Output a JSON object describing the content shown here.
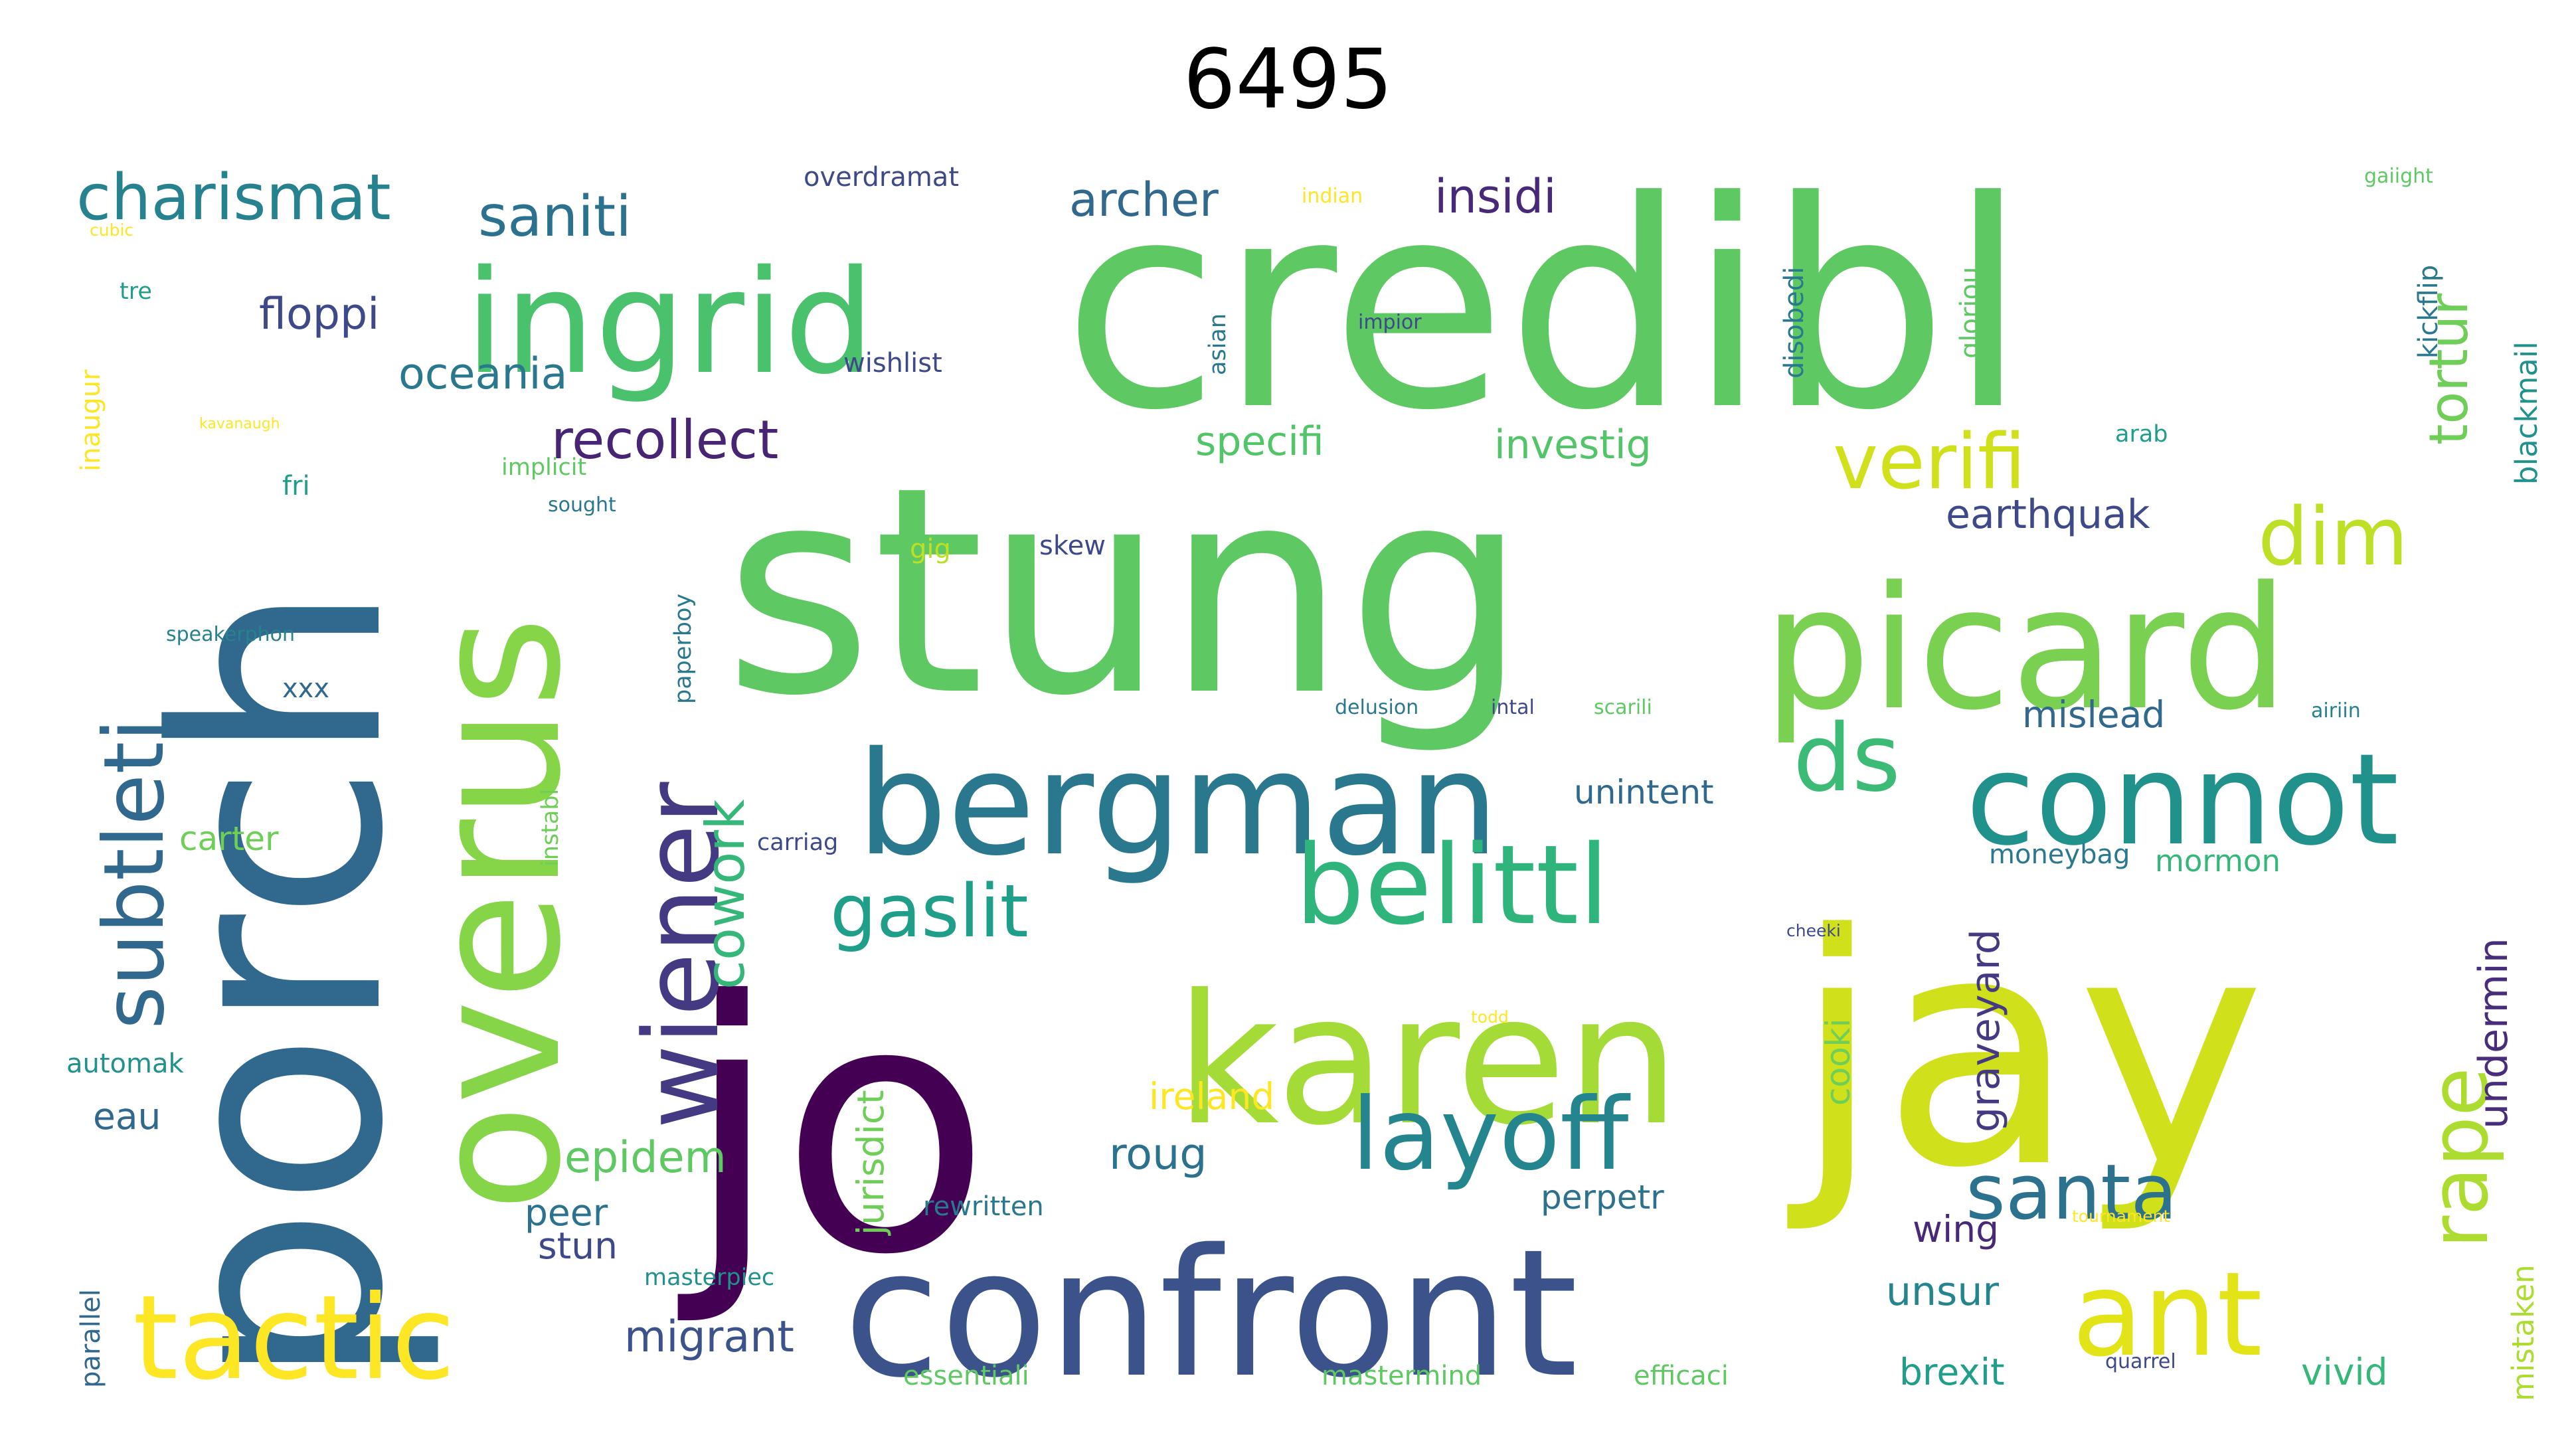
{
  "title": "6495",
  "words": [
    {
      "text": "credibl",
      "color": "#5ec962"
    },
    {
      "text": "stung",
      "color": "#5ec962"
    },
    {
      "text": "porch",
      "color": "#31688e"
    },
    {
      "text": "jo",
      "color": "#440154"
    },
    {
      "text": "jay",
      "color": "#d0e11c"
    },
    {
      "text": "picard",
      "color": "#7ad151"
    },
    {
      "text": "confront",
      "color": "#3b528b"
    },
    {
      "text": "overus",
      "color": "#86d549"
    },
    {
      "text": "karen",
      "color": "#a5db36"
    },
    {
      "text": "bergman",
      "color": "#2a788e"
    },
    {
      "text": "ingrid",
      "color": "#4ac16d"
    },
    {
      "text": "connot",
      "color": "#21918c"
    },
    {
      "text": "tactic",
      "color": "#fde725"
    },
    {
      "text": "ant",
      "color": "#e2e418"
    },
    {
      "text": "belittl",
      "color": "#2fb47c"
    },
    {
      "text": "wiener",
      "color": "#443a83"
    },
    {
      "text": "layoff",
      "color": "#25858e"
    },
    {
      "text": "subtleti",
      "color": "#31688e"
    },
    {
      "text": "rape",
      "color": "#addc30"
    },
    {
      "text": "dim",
      "color": "#bddf26"
    },
    {
      "text": "ds",
      "color": "#3bbb75"
    },
    {
      "text": "verifi",
      "color": "#d0e11c"
    },
    {
      "text": "santa",
      "color": "#2c728e"
    },
    {
      "text": "gaslit",
      "color": "#1f9e89"
    },
    {
      "text": "charismat",
      "color": "#26828e"
    },
    {
      "text": "saniti",
      "color": "#2c728e"
    },
    {
      "text": "recollect",
      "color": "#482475"
    },
    {
      "text": "cowork",
      "color": "#35b779"
    },
    {
      "text": "tortur",
      "color": "#6ece58"
    },
    {
      "text": "undermin",
      "color": "#472d7b"
    },
    {
      "text": "graveyard",
      "color": "#443a83"
    },
    {
      "text": "archer",
      "color": "#31688e"
    },
    {
      "text": "insidi",
      "color": "#482878"
    },
    {
      "text": "floppi",
      "color": "#3e4989"
    },
    {
      "text": "oceania",
      "color": "#2a788e"
    },
    {
      "text": "specifi",
      "color": "#52c569"
    },
    {
      "text": "investig",
      "color": "#52c569"
    },
    {
      "text": "earthquak",
      "color": "#3e4989"
    },
    {
      "text": "mislead",
      "color": "#31688e"
    },
    {
      "text": "epidem",
      "color": "#5ec962"
    },
    {
      "text": "migrant",
      "color": "#3b528b"
    },
    {
      "text": "roug",
      "color": "#2c728e"
    },
    {
      "text": "ireland",
      "color": "#fde725"
    },
    {
      "text": "cooki",
      "color": "#6ece58"
    },
    {
      "text": "jurisdict",
      "color": "#6ece58"
    },
    {
      "text": "unsur",
      "color": "#25858e"
    },
    {
      "text": "wing",
      "color": "#482878"
    },
    {
      "text": "brexit",
      "color": "#1f9e89"
    },
    {
      "text": "vivid",
      "color": "#35b779"
    },
    {
      "text": "mormon",
      "color": "#35b779"
    },
    {
      "text": "mistaken",
      "color": "#addc30"
    },
    {
      "text": "blackmail",
      "color": "#21918c"
    },
    {
      "text": "kickflip",
      "color": "#2a788e"
    },
    {
      "text": "peer",
      "color": "#2c728e"
    },
    {
      "text": "stun",
      "color": "#3e4989"
    },
    {
      "text": "perpetr",
      "color": "#2c728e"
    },
    {
      "text": "eau",
      "color": "#31688e"
    },
    {
      "text": "parallel",
      "color": "#31688e"
    },
    {
      "text": "carter",
      "color": "#6ece58"
    },
    {
      "text": "automak",
      "color": "#21918c"
    },
    {
      "text": "unintent",
      "color": "#31688e"
    },
    {
      "text": "moneybag",
      "color": "#2a788e"
    },
    {
      "text": "inaugur",
      "color": "#fde725"
    },
    {
      "text": "tre",
      "color": "#1f9e89"
    },
    {
      "text": "cubic",
      "color": "#fde725"
    },
    {
      "text": "overdramat",
      "color": "#3e4989"
    },
    {
      "text": "indian",
      "color": "#fde725"
    },
    {
      "text": "gaiight",
      "color": "#5ec962"
    },
    {
      "text": "wishlist",
      "color": "#3e4989"
    },
    {
      "text": "kavanaugh",
      "color": "#fde725"
    },
    {
      "text": "impior",
      "color": "#3e4989"
    },
    {
      "text": "asian",
      "color": "#2a788e"
    },
    {
      "text": "disobedi",
      "color": "#2a788e"
    },
    {
      "text": "gloriou",
      "color": "#5ec962"
    },
    {
      "text": "arab",
      "color": "#1f9e89"
    },
    {
      "text": "fri",
      "color": "#1f9e89"
    },
    {
      "text": "implicit",
      "color": "#5ec962"
    },
    {
      "text": "sought",
      "color": "#2a788e"
    },
    {
      "text": "gig",
      "color": "#bddf26"
    },
    {
      "text": "skew",
      "color": "#3e4989"
    },
    {
      "text": "paperboy",
      "color": "#2a788e"
    },
    {
      "text": "speakerphon",
      "color": "#26828e"
    },
    {
      "text": "xxx",
      "color": "#31688e"
    },
    {
      "text": "delusion",
      "color": "#2a788e"
    },
    {
      "text": "intal",
      "color": "#3e4989"
    },
    {
      "text": "scarili",
      "color": "#5ec962"
    },
    {
      "text": "airiin",
      "color": "#26828e"
    },
    {
      "text": "instabl",
      "color": "#6ece58"
    },
    {
      "text": "carriag",
      "color": "#3e4989"
    },
    {
      "text": "cheeki",
      "color": "#3e4989"
    },
    {
      "text": "todd",
      "color": "#fde725"
    },
    {
      "text": "rewritten",
      "color": "#2a788e"
    },
    {
      "text": "tournament",
      "color": "#fde725"
    },
    {
      "text": "masterpiec",
      "color": "#21918c"
    },
    {
      "text": "essentiali",
      "color": "#5ec962"
    },
    {
      "text": "mastermind",
      "color": "#5ec962"
    },
    {
      "text": "efficaci",
      "color": "#5ec962"
    },
    {
      "text": "quarrel",
      "color": "#3e4989"
    }
  ]
}
